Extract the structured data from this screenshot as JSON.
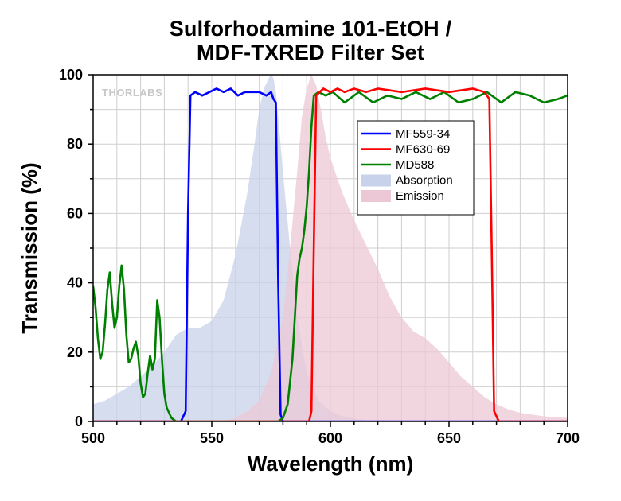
{
  "chart_data": {
    "type": "line",
    "title_line1": "Sulforhodamine 101-EtOH /",
    "title_line2": "MDF-TXRED Filter Set",
    "xlabel": "Wavelength (nm)",
    "ylabel": "Transmission (%)",
    "xlim": [
      500,
      700
    ],
    "ylim": [
      0,
      100
    ],
    "xticks": [
      "500",
      "550",
      "600",
      "650",
      "700"
    ],
    "yticks": [
      "0",
      "20",
      "40",
      "60",
      "80",
      "100"
    ],
    "grid": true,
    "legend_position": "upper-right inside plot",
    "watermark": "THORLABS",
    "series": [
      {
        "name": "MF559-34",
        "kind": "line",
        "color": "#0000ff",
        "x": [
          500,
          537,
          539,
          540,
          541,
          543,
          546,
          549,
          552,
          555,
          558,
          561,
          564,
          567,
          570,
          573,
          575,
          576,
          577,
          578,
          579,
          580,
          700
        ],
        "y": [
          0,
          0,
          3,
          60,
          94,
          95,
          94,
          95,
          96,
          95,
          96,
          94,
          95,
          95,
          95,
          94,
          95,
          93,
          92,
          40,
          2,
          0,
          0
        ]
      },
      {
        "name": "MF630-69",
        "kind": "line",
        "color": "#ff0000",
        "x": [
          500,
          591,
          592,
          593,
          594,
          597,
          600,
          603,
          606,
          610,
          615,
          620,
          630,
          640,
          650,
          660,
          665,
          667,
          668,
          669,
          671,
          700
        ],
        "y": [
          0,
          0,
          3,
          50,
          94,
          96,
          95,
          96,
          95,
          96,
          95,
          96,
          95,
          96,
          95,
          96,
          95,
          93,
          50,
          3,
          0,
          0
        ]
      },
      {
        "name": "MD588",
        "kind": "line",
        "color": "#008000",
        "x": [
          500,
          501,
          502,
          503,
          504,
          505,
          506,
          507,
          508,
          509,
          510,
          511,
          512,
          513,
          514,
          515,
          516,
          517,
          518,
          519,
          520,
          521,
          522,
          523,
          524,
          525,
          526,
          527,
          528,
          529,
          530,
          531,
          533,
          535,
          540,
          545,
          550,
          560,
          570,
          575,
          578,
          580,
          582,
          584,
          585,
          586,
          587,
          588,
          589,
          590,
          591,
          592,
          593,
          595,
          598,
          601,
          606,
          612,
          618,
          624,
          630,
          636,
          642,
          648,
          654,
          660,
          666,
          672,
          678,
          684,
          690,
          696,
          700
        ],
        "y": [
          39,
          33,
          24,
          18,
          20,
          28,
          38,
          43,
          34,
          27,
          30,
          39,
          45,
          38,
          25,
          17,
          18,
          21,
          23,
          19,
          11,
          7,
          8,
          14,
          19,
          15,
          18,
          35,
          30,
          18,
          8,
          4,
          1,
          0,
          0,
          0,
          0,
          0,
          0,
          0,
          0,
          1,
          5,
          18,
          30,
          42,
          47,
          50,
          55,
          62,
          72,
          85,
          94,
          95,
          94,
          95,
          92,
          95,
          92,
          94,
          93,
          95,
          93,
          95,
          92,
          93,
          95,
          92,
          95,
          94,
          92,
          93,
          94
        ]
      },
      {
        "name": "Absorption",
        "kind": "area",
        "color": "#c8d2ea",
        "x": [
          500,
          505,
          510,
          515,
          520,
          525,
          530,
          535,
          540,
          545,
          550,
          555,
          560,
          565,
          568,
          570,
          572,
          574,
          575,
          576,
          577,
          578,
          580,
          583,
          586,
          590,
          595,
          600,
          605,
          610,
          615,
          620
        ],
        "y": [
          5,
          6,
          8,
          10,
          13,
          16,
          20,
          25,
          27,
          27,
          29,
          35,
          48,
          66,
          80,
          90,
          96,
          99,
          100,
          99,
          95,
          88,
          72,
          50,
          30,
          14,
          6,
          3,
          1.5,
          0.8,
          0.3,
          0
        ]
      },
      {
        "name": "Emission",
        "kind": "area",
        "color": "#ecc8d6",
        "x": [
          555,
          560,
          565,
          570,
          575,
          580,
          583,
          586,
          588,
          590,
          592,
          594,
          596,
          598,
          600,
          605,
          610,
          615,
          620,
          625,
          630,
          635,
          640,
          645,
          650,
          655,
          660,
          665,
          670,
          675,
          680,
          690,
          700
        ],
        "y": [
          0,
          1,
          3,
          6,
          14,
          30,
          50,
          72,
          88,
          96,
          100,
          97,
          90,
          82,
          76,
          66,
          58,
          51,
          44,
          36,
          30,
          26,
          24,
          21,
          17,
          13,
          10,
          7,
          5,
          3.5,
          2.5,
          1.5,
          1
        ]
      }
    ]
  }
}
